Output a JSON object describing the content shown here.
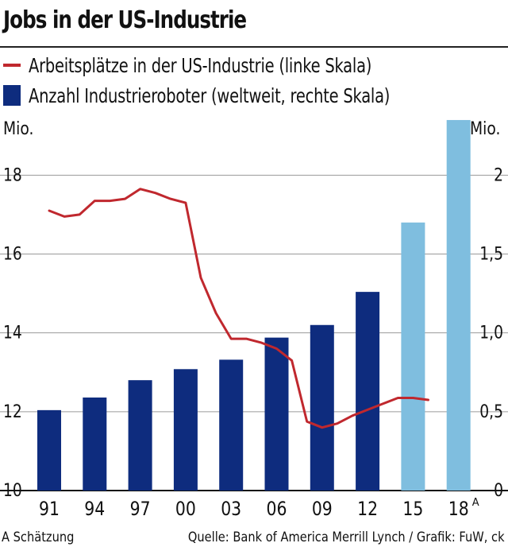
{
  "title": "Jobs in der US-Industrie",
  "legend": {
    "line_label": "Arbeitsplätze in der US-Industrie (linke Skala)",
    "bar_label": "Anzahl Industrieroboter (weltweit, rechte Skala)"
  },
  "colors": {
    "line": "#c0282e",
    "bar": "#0e2c7e",
    "bar_estimate": "#7fbedf",
    "grid": "#9a9a9a"
  },
  "units": {
    "left": "Mio.",
    "right": "Mio."
  },
  "footnote": "A Schätzung",
  "source": "Quelle: Bank of America Merrill Lynch / Grafik: FuW, ck",
  "chart_data": {
    "type": "bar+line",
    "title": "Jobs in der US-Industrie",
    "categories": [
      "91",
      "94",
      "97",
      "00",
      "03",
      "06",
      "09",
      "12",
      "15",
      "18"
    ],
    "category_superscripts": {
      "18": "A"
    },
    "left_axis": {
      "label": "Mio.",
      "ylim": [
        10,
        19.5
      ],
      "ticks": [
        10,
        12,
        14,
        16,
        18
      ],
      "tick_labels": [
        "10",
        "12",
        "14",
        "16",
        "18"
      ]
    },
    "right_axis": {
      "label": "Mio.",
      "ylim": [
        0,
        2.375
      ],
      "ticks": [
        0,
        0.5,
        1.0,
        1.5,
        2
      ],
      "tick_labels": [
        "0",
        "0,5",
        "1,0",
        "1,5",
        "2"
      ]
    },
    "grid": true,
    "series": [
      {
        "name": "Anzahl Industrieroboter (weltweit, rechte Skala)",
        "type": "bar",
        "axis": "right",
        "values": [
          0.51,
          0.59,
          0.7,
          0.77,
          0.83,
          0.97,
          1.05,
          1.26,
          1.7,
          2.35
        ],
        "estimate": [
          false,
          false,
          false,
          false,
          false,
          false,
          false,
          false,
          true,
          true
        ]
      },
      {
        "name": "Arbeitsplätze in der US-Industrie (linke Skala)",
        "type": "line",
        "axis": "left",
        "x": [
          1991,
          1992,
          1993,
          1994,
          1995,
          1996,
          1997,
          1998,
          1999,
          2000,
          2001,
          2002,
          2003,
          2004,
          2005,
          2006,
          2007,
          2008,
          2009,
          2010,
          2011,
          2012,
          2013,
          2014,
          2015,
          2016
        ],
        "values": [
          17.1,
          16.95,
          17.0,
          17.35,
          17.35,
          17.4,
          17.65,
          17.55,
          17.4,
          17.3,
          15.4,
          14.5,
          13.85,
          13.85,
          13.75,
          13.6,
          13.3,
          11.75,
          11.6,
          11.7,
          11.9,
          12.05,
          12.2,
          12.35,
          12.35,
          12.3
        ]
      }
    ]
  }
}
